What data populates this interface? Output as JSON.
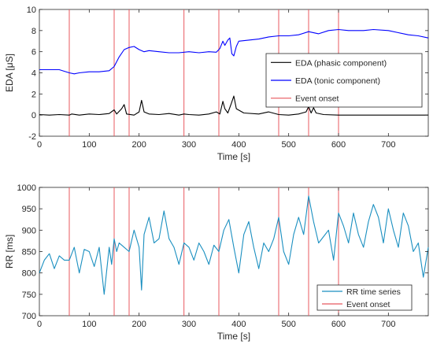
{
  "chart_data": [
    {
      "type": "line",
      "xlabel": "Time [s]",
      "ylabel": "EDA [μS]",
      "xlim": [
        0,
        780
      ],
      "ylim": [
        -2,
        10
      ],
      "xticks": [
        0,
        100,
        200,
        300,
        400,
        500,
        600,
        700
      ],
      "yticks": [
        -2,
        0,
        2,
        4,
        6,
        8,
        10
      ],
      "legend_position": "center-right",
      "grid": false,
      "series": [
        {
          "name": "EDA (phasic component)",
          "color": "#000000",
          "x": [
            0,
            20,
            40,
            60,
            65,
            80,
            100,
            120,
            140,
            150,
            155,
            165,
            170,
            175,
            190,
            200,
            205,
            210,
            220,
            240,
            260,
            280,
            290,
            300,
            320,
            340,
            355,
            362,
            368,
            372,
            378,
            385,
            390,
            395,
            410,
            440,
            460,
            480,
            500,
            520,
            535,
            540,
            545,
            550,
            555,
            570,
            600,
            650,
            700,
            780
          ],
          "y": [
            0.05,
            0.0,
            0.05,
            0.0,
            0.1,
            0.0,
            0.1,
            0.05,
            0.15,
            0.5,
            0.1,
            0.6,
            1.0,
            0.1,
            0.0,
            0.3,
            1.4,
            0.3,
            0.1,
            0.05,
            0.15,
            0.0,
            0.1,
            0.05,
            0.0,
            0.1,
            0.3,
            0.1,
            1.3,
            0.6,
            0.2,
            1.1,
            1.8,
            0.6,
            0.2,
            0.1,
            0.3,
            0.05,
            0.0,
            0.1,
            0.3,
            0.8,
            0.2,
            0.7,
            0.2,
            0.05,
            0.0,
            0.0,
            0.0,
            0.0
          ]
        },
        {
          "name": "EDA (tonic component)",
          "color": "#0000ff",
          "x": [
            0,
            20,
            40,
            60,
            70,
            80,
            100,
            120,
            140,
            150,
            160,
            170,
            180,
            190,
            200,
            210,
            220,
            240,
            260,
            280,
            300,
            320,
            340,
            355,
            362,
            368,
            372,
            378,
            382,
            386,
            390,
            395,
            400,
            420,
            440,
            460,
            480,
            500,
            520,
            540,
            560,
            580,
            600,
            620,
            650,
            670,
            700,
            720,
            740,
            760,
            780
          ],
          "y": [
            4.3,
            4.3,
            4.3,
            4.0,
            3.9,
            4.0,
            4.1,
            4.1,
            4.2,
            4.6,
            5.5,
            6.2,
            6.4,
            6.5,
            6.2,
            6.0,
            6.1,
            6.0,
            5.9,
            5.9,
            6.0,
            5.9,
            6.0,
            5.95,
            6.3,
            7.0,
            6.6,
            7.1,
            7.3,
            5.8,
            5.6,
            6.5,
            7.0,
            7.1,
            7.2,
            7.4,
            7.5,
            7.5,
            7.6,
            7.9,
            7.7,
            8.0,
            8.1,
            8.0,
            8.0,
            8.1,
            8.0,
            7.8,
            7.6,
            7.5,
            7.3
          ]
        }
      ],
      "event_onsets": [
        60,
        150,
        180,
        290,
        360,
        480,
        540,
        600
      ],
      "event_label": "Event onset",
      "event_color": "#e8595f"
    },
    {
      "type": "line",
      "xlabel": "Time [s]",
      "ylabel": "RR [ms]",
      "xlim": [
        0,
        780
      ],
      "ylim": [
        700,
        1000
      ],
      "xticks": [
        0,
        100,
        200,
        300,
        400,
        500,
        600,
        700
      ],
      "yticks": [
        700,
        750,
        800,
        850,
        900,
        950,
        1000
      ],
      "legend_position": "bottom-right",
      "grid": false,
      "series": [
        {
          "name": "RR time series",
          "color": "#1a8fc0",
          "x": [
            0,
            10,
            20,
            30,
            40,
            50,
            60,
            70,
            80,
            90,
            100,
            110,
            120,
            130,
            140,
            145,
            150,
            155,
            160,
            170,
            180,
            190,
            200,
            205,
            210,
            220,
            230,
            240,
            250,
            260,
            270,
            280,
            290,
            300,
            310,
            320,
            330,
            340,
            350,
            360,
            370,
            380,
            390,
            400,
            410,
            420,
            430,
            440,
            450,
            460,
            470,
            480,
            490,
            500,
            510,
            520,
            530,
            540,
            550,
            560,
            570,
            580,
            590,
            600,
            610,
            620,
            630,
            640,
            650,
            660,
            670,
            680,
            690,
            700,
            710,
            720,
            730,
            740,
            750,
            760,
            770,
            780
          ],
          "y": [
            800,
            830,
            845,
            810,
            840,
            830,
            830,
            860,
            800,
            855,
            850,
            815,
            860,
            750,
            860,
            820,
            880,
            850,
            870,
            860,
            850,
            900,
            860,
            760,
            890,
            930,
            870,
            880,
            945,
            880,
            860,
            820,
            870,
            860,
            830,
            870,
            850,
            820,
            865,
            850,
            900,
            925,
            860,
            800,
            890,
            920,
            860,
            810,
            870,
            850,
            880,
            930,
            850,
            820,
            890,
            930,
            890,
            980,
            920,
            870,
            885,
            900,
            830,
            940,
            910,
            870,
            940,
            890,
            860,
            920,
            960,
            930,
            870,
            950,
            900,
            860,
            940,
            910,
            850,
            870,
            790,
            860
          ]
        }
      ],
      "event_onsets": [
        60,
        150,
        180,
        290,
        360,
        480,
        540,
        600
      ],
      "event_label": "Event onset",
      "event_color": "#e8595f"
    }
  ]
}
